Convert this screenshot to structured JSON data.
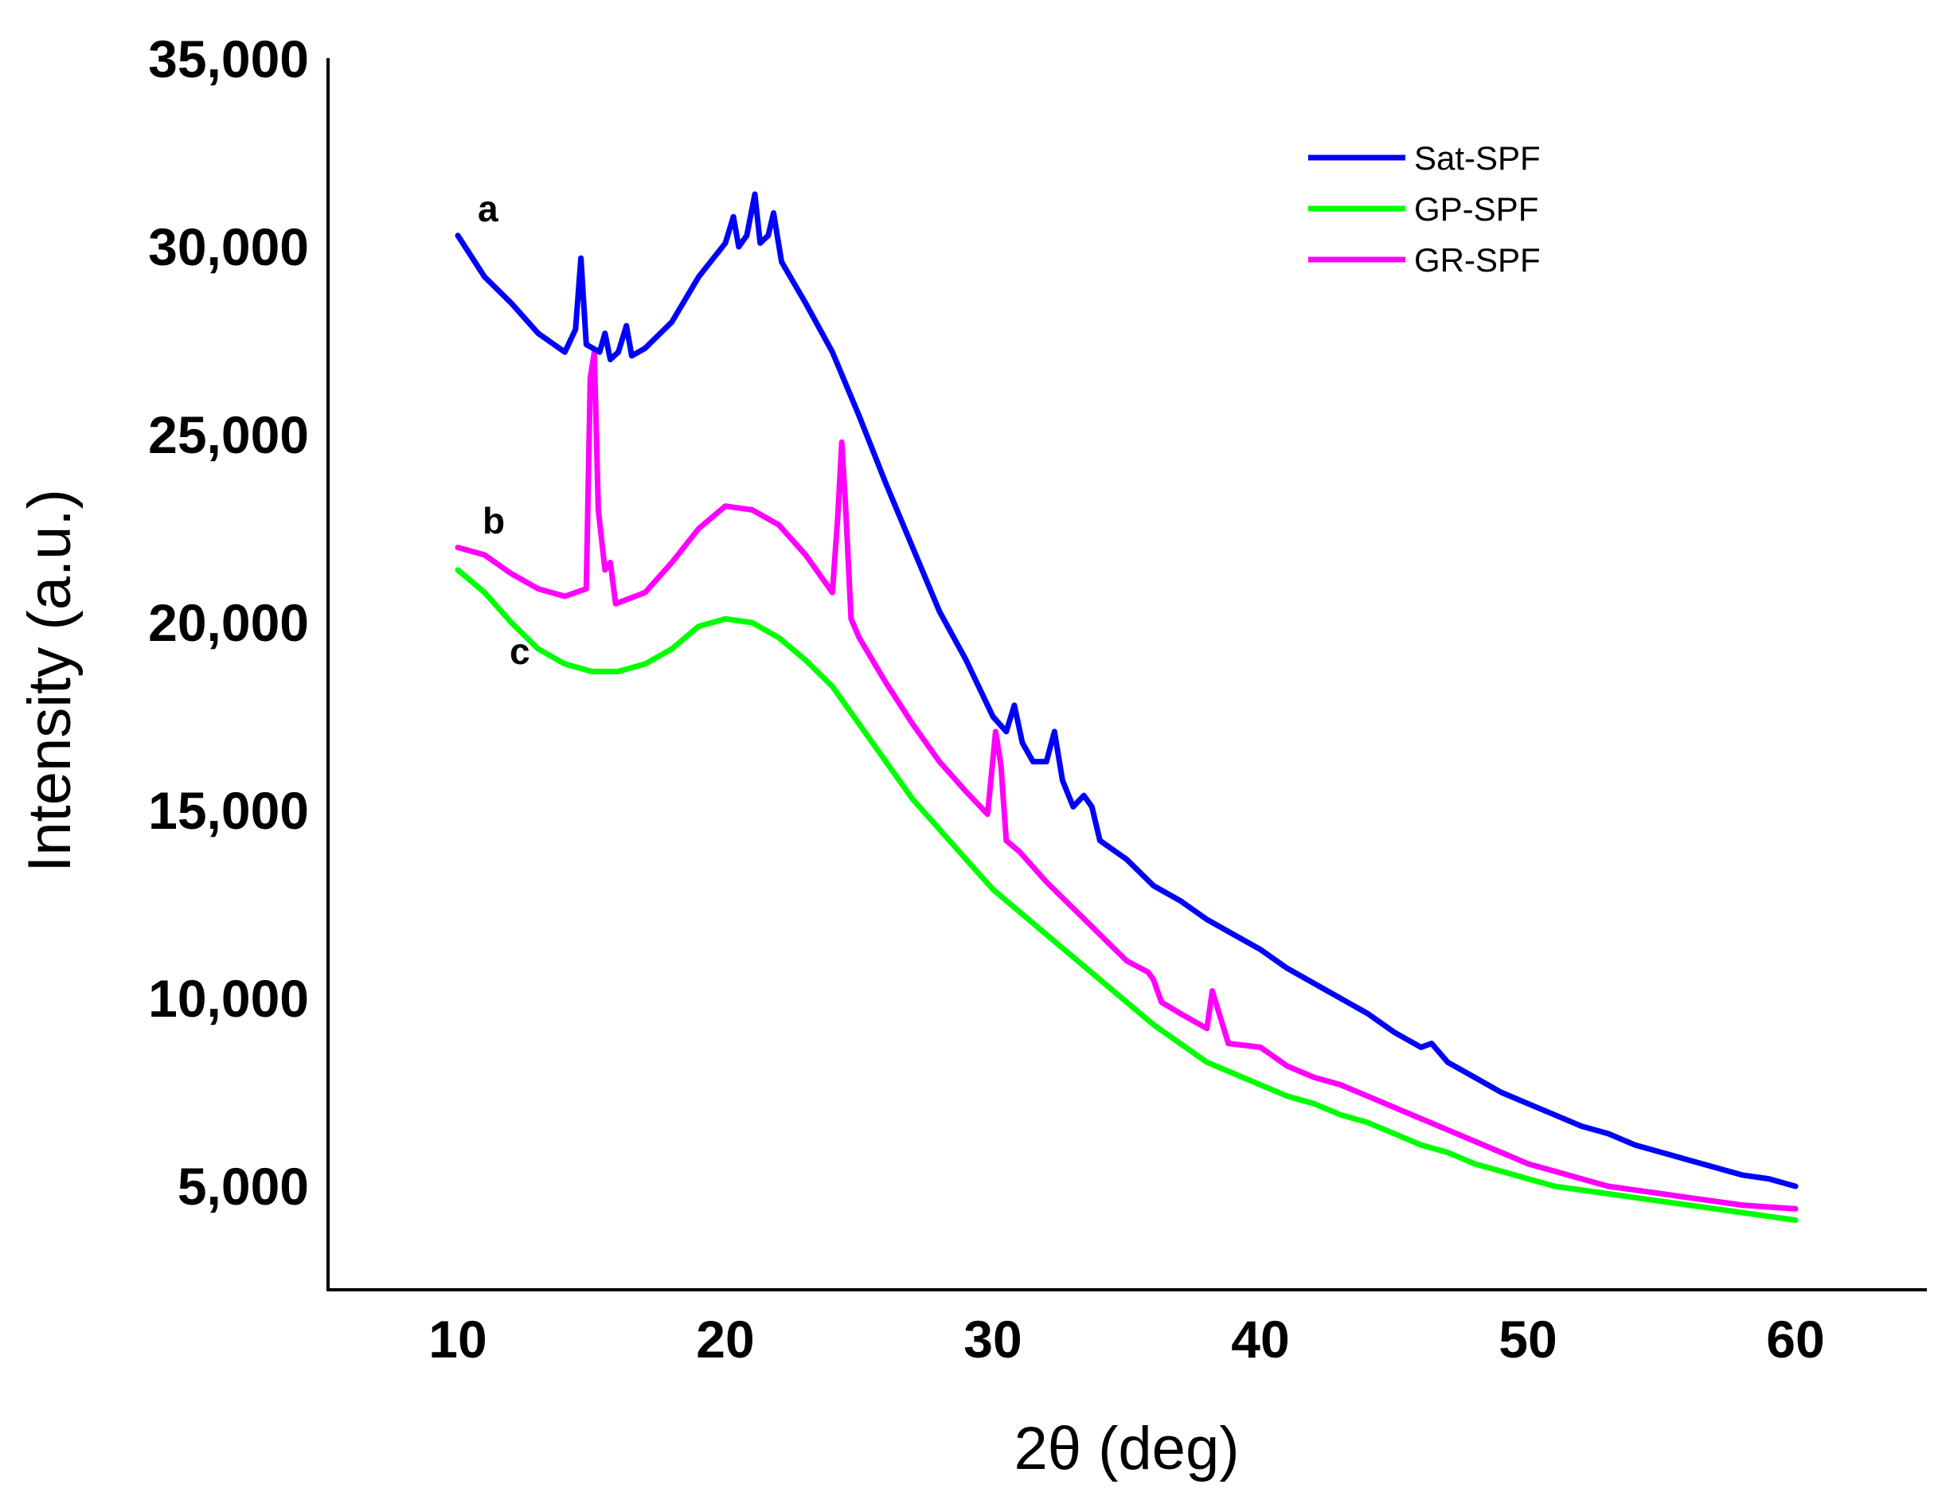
{
  "chart_data": {
    "type": "line",
    "title": "",
    "xlabel": "2θ (deg)",
    "ylabel": "Intensity (a.u.)",
    "xlim": [
      5,
      65
    ],
    "ylim": [
      1800,
      35000
    ],
    "x_ticks": [
      10,
      20,
      30,
      40,
      50,
      60
    ],
    "x_tick_labels": [
      "10",
      "20",
      "30",
      "40",
      "50",
      "60"
    ],
    "y_ticks": [
      5000,
      10000,
      15000,
      20000,
      25000,
      30000,
      35000
    ],
    "y_tick_labels": [
      "5,000",
      "10,000",
      "15,000",
      "20,000",
      "25,000",
      "30,000",
      "35,000"
    ],
    "grid": false,
    "legend_position": "top-right",
    "series": [
      {
        "name": "Sat-SPF",
        "label": "a",
        "color": "#0000ff",
        "points": [
          [
            10,
            30300
          ],
          [
            11,
            29200
          ],
          [
            12,
            28500
          ],
          [
            13,
            27700
          ],
          [
            14,
            27200
          ],
          [
            14.4,
            27800
          ],
          [
            14.6,
            29700
          ],
          [
            14.8,
            27400
          ],
          [
            15.3,
            27200
          ],
          [
            15.5,
            27700
          ],
          [
            15.7,
            27000
          ],
          [
            16,
            27200
          ],
          [
            16.3,
            27900
          ],
          [
            16.5,
            27100
          ],
          [
            17,
            27300
          ],
          [
            18,
            28000
          ],
          [
            19,
            29200
          ],
          [
            20,
            30100
          ],
          [
            20.3,
            30800
          ],
          [
            20.5,
            30000
          ],
          [
            20.8,
            30300
          ],
          [
            21.1,
            31400
          ],
          [
            21.3,
            30100
          ],
          [
            21.6,
            30300
          ],
          [
            21.8,
            30900
          ],
          [
            22.1,
            29600
          ],
          [
            23,
            28500
          ],
          [
            24,
            27200
          ],
          [
            25,
            25500
          ],
          [
            26,
            23700
          ],
          [
            27,
            22000
          ],
          [
            28,
            20300
          ],
          [
            29,
            19000
          ],
          [
            30,
            17500
          ],
          [
            30.5,
            17100
          ],
          [
            30.8,
            17800
          ],
          [
            31.1,
            16800
          ],
          [
            31.5,
            16300
          ],
          [
            32,
            16300
          ],
          [
            32.3,
            17100
          ],
          [
            32.6,
            15800
          ],
          [
            33,
            15100
          ],
          [
            33.4,
            15400
          ],
          [
            33.7,
            15100
          ],
          [
            34,
            14200
          ],
          [
            35,
            13700
          ],
          [
            36,
            13000
          ],
          [
            37,
            12600
          ],
          [
            38,
            12100
          ],
          [
            39,
            11700
          ],
          [
            40,
            11300
          ],
          [
            41,
            10800
          ],
          [
            42,
            10400
          ],
          [
            43,
            10000
          ],
          [
            44,
            9600
          ],
          [
            45,
            9100
          ],
          [
            46,
            8700
          ],
          [
            46.4,
            8800
          ],
          [
            47,
            8300
          ],
          [
            48,
            7900
          ],
          [
            49,
            7500
          ],
          [
            50,
            7200
          ],
          [
            51,
            6900
          ],
          [
            52,
            6600
          ],
          [
            53,
            6400
          ],
          [
            54,
            6100
          ],
          [
            55,
            5900
          ],
          [
            56,
            5700
          ],
          [
            57,
            5500
          ],
          [
            58,
            5300
          ],
          [
            59,
            5200
          ],
          [
            60,
            5000
          ]
        ]
      },
      {
        "name": "GP-SPF",
        "label": "c",
        "color": "#00ff00",
        "points": [
          [
            10,
            21400
          ],
          [
            11,
            20800
          ],
          [
            12,
            20000
          ],
          [
            13,
            19300
          ],
          [
            14,
            18900
          ],
          [
            15,
            18700
          ],
          [
            16,
            18700
          ],
          [
            17,
            18900
          ],
          [
            18,
            19300
          ],
          [
            19,
            19900
          ],
          [
            20,
            20100
          ],
          [
            21,
            20000
          ],
          [
            22,
            19600
          ],
          [
            23,
            19000
          ],
          [
            24,
            18300
          ],
          [
            25,
            17300
          ],
          [
            26,
            16300
          ],
          [
            27,
            15300
          ],
          [
            28,
            14500
          ],
          [
            29,
            13700
          ],
          [
            30,
            12900
          ],
          [
            31,
            12300
          ],
          [
            32,
            11700
          ],
          [
            33,
            11100
          ],
          [
            34,
            10500
          ],
          [
            35,
            9900
          ],
          [
            36,
            9300
          ],
          [
            37,
            8800
          ],
          [
            38,
            8300
          ],
          [
            39,
            8000
          ],
          [
            40,
            7700
          ],
          [
            41,
            7400
          ],
          [
            42,
            7200
          ],
          [
            43,
            6900
          ],
          [
            44,
            6700
          ],
          [
            45,
            6400
          ],
          [
            46,
            6100
          ],
          [
            47,
            5900
          ],
          [
            48,
            5600
          ],
          [
            49,
            5400
          ],
          [
            50,
            5200
          ],
          [
            51,
            5000
          ],
          [
            52,
            4900
          ],
          [
            53,
            4800
          ],
          [
            54,
            4700
          ],
          [
            55,
            4600
          ],
          [
            56,
            4500
          ],
          [
            57,
            4400
          ],
          [
            58,
            4300
          ],
          [
            59,
            4200
          ],
          [
            60,
            4100
          ]
        ]
      },
      {
        "name": "GR-SPF",
        "label": "b",
        "color": "#ff00ff",
        "points": [
          [
            10,
            22000
          ],
          [
            11,
            21800
          ],
          [
            12,
            21300
          ],
          [
            13,
            20900
          ],
          [
            14,
            20700
          ],
          [
            14.8,
            20900
          ],
          [
            14.95,
            26500
          ],
          [
            15.1,
            27200
          ],
          [
            15.25,
            23000
          ],
          [
            15.5,
            21400
          ],
          [
            15.7,
            21600
          ],
          [
            15.9,
            20500
          ],
          [
            17,
            20800
          ],
          [
            18,
            21600
          ],
          [
            19,
            22500
          ],
          [
            20,
            23100
          ],
          [
            21,
            23000
          ],
          [
            22,
            22600
          ],
          [
            23,
            21800
          ],
          [
            24,
            20800
          ],
          [
            24.2,
            22800
          ],
          [
            24.35,
            24800
          ],
          [
            24.5,
            23000
          ],
          [
            24.7,
            20100
          ],
          [
            25,
            19600
          ],
          [
            26,
            18400
          ],
          [
            27,
            17300
          ],
          [
            28,
            16300
          ],
          [
            29,
            15500
          ],
          [
            29.8,
            14900
          ],
          [
            30.1,
            17100
          ],
          [
            30.3,
            16200
          ],
          [
            30.5,
            14200
          ],
          [
            31,
            13900
          ],
          [
            32,
            13100
          ],
          [
            33,
            12400
          ],
          [
            34,
            11700
          ],
          [
            35,
            11000
          ],
          [
            35.8,
            10700
          ],
          [
            36,
            10500
          ],
          [
            36.3,
            9900
          ],
          [
            37,
            9600
          ],
          [
            38,
            9200
          ],
          [
            38.2,
            10200
          ],
          [
            38.5,
            9500
          ],
          [
            38.8,
            8800
          ],
          [
            40,
            8700
          ],
          [
            41,
            8200
          ],
          [
            42,
            7900
          ],
          [
            43,
            7700
          ],
          [
            44,
            7400
          ],
          [
            45,
            7100
          ],
          [
            46,
            6800
          ],
          [
            47,
            6500
          ],
          [
            48,
            6200
          ],
          [
            49,
            5900
          ],
          [
            50,
            5600
          ],
          [
            51,
            5400
          ],
          [
            52,
            5200
          ],
          [
            53,
            5000
          ],
          [
            54,
            4900
          ],
          [
            55,
            4800
          ],
          [
            56,
            4700
          ],
          [
            57,
            4600
          ],
          [
            58,
            4500
          ],
          [
            59,
            4450
          ],
          [
            60,
            4400
          ]
        ]
      }
    ]
  }
}
